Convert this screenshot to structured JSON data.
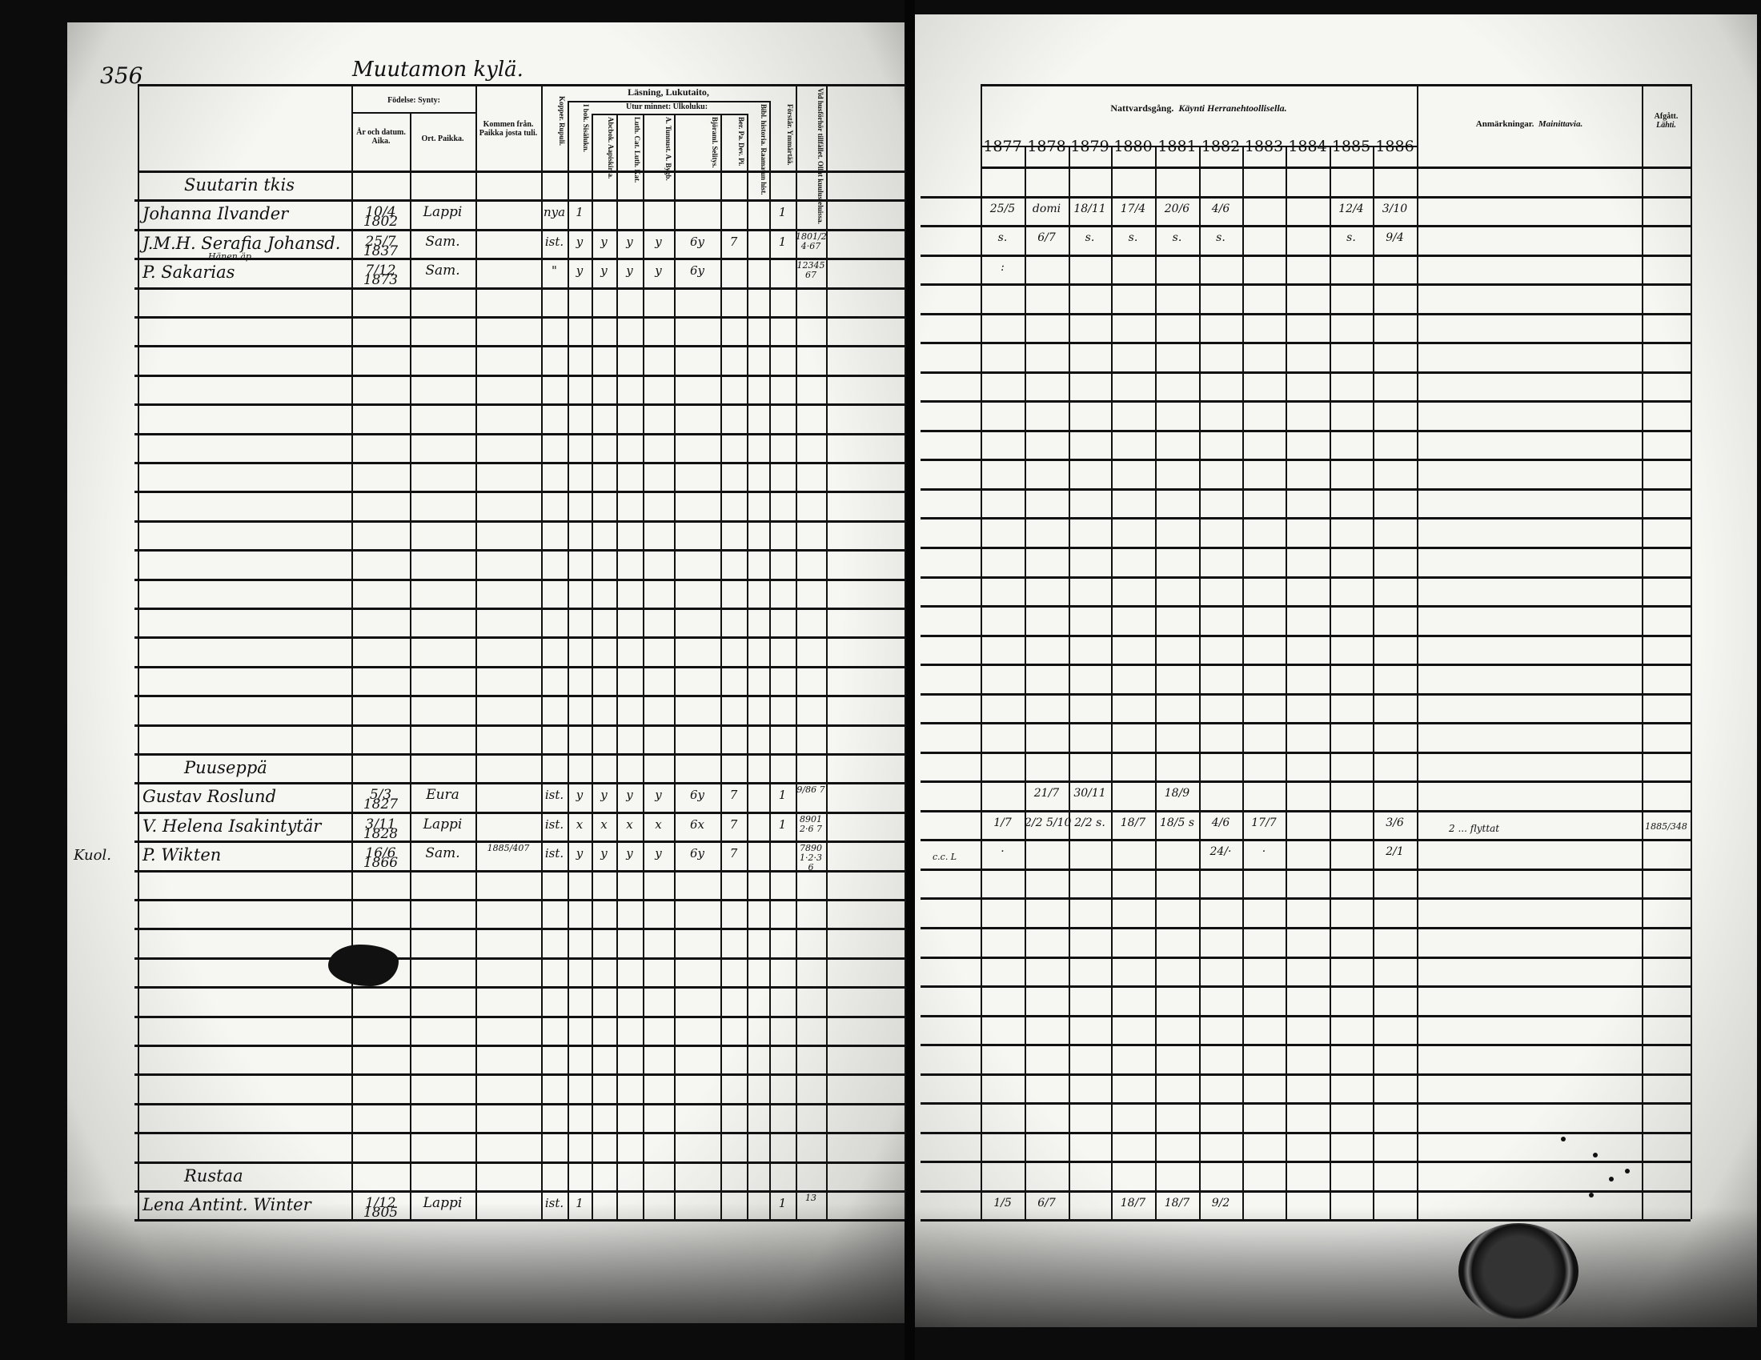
{
  "page_number": "356",
  "village_title": "Muutamon kylä.",
  "left_header": {
    "born": "Födelse: Synty:",
    "born_date": "År och datum. Aika.",
    "born_place": "Ort. Paikka.",
    "came_from": "Kommen från. Paikka josta tuli.",
    "reading": "Läsning, Lukutaito,",
    "by_heart": "Utur minnet: Ulkoluku:",
    "columns": [
      "Kopper. Rupuli.",
      "I bok. Sisälukn.",
      "Abcbok. Aapiskirja.",
      "Luth. Cat. Luth. Kat.",
      "A. Tunnust. A. Bygb.",
      "Björaml. Selitys.",
      "Ber. Pa. Dev. Pi.",
      "Bibl. historia. Raamatun hist.",
      "Förstår. Ymmärtää.",
      "Vid husförhör tillfället. Ollut kuulusteluissa."
    ]
  },
  "right_header": {
    "communion": "Nattvardsgång.",
    "communion_fi": "Käynti Herranehtoollisella.",
    "years": [
      "1877",
      "1878",
      "1879",
      "1880",
      "1881",
      "1882",
      "1883",
      "1884",
      "1885",
      "1886"
    ],
    "remarks": "Anmärkningar.",
    "remarks_fi": "Mainittavia.",
    "departed": "Afgått.",
    "departed_fi": "Lähti."
  },
  "rows": [
    {
      "type": "heading",
      "name": "Suutarin tkis",
      "cells": [],
      "years": [],
      "remarks": "",
      "departed": ""
    },
    {
      "type": "person",
      "name": "Johanna Ilvander",
      "cells": [
        "10/4 1802",
        "Lappi",
        "",
        "nya",
        "1",
        "",
        "",
        "",
        "",
        "",
        "",
        "1",
        ""
      ],
      "years": [
        "25/5",
        "domi",
        "18/11",
        "17/4",
        "20/6",
        "4/6",
        "",
        "",
        "12/4",
        "3/10"
      ],
      "remarks": "",
      "departed": ""
    },
    {
      "type": "person",
      "name": "J.M.H. Serafia Johansd.",
      "cells": [
        "25/7 1837",
        "Sam.",
        "",
        "ist.",
        "y",
        "y",
        "y",
        "y",
        "6y",
        "7",
        "",
        "1",
        "1801/2 4·67"
      ],
      "years": [
        "s.",
        "6/7",
        "s.",
        "s.",
        "s.",
        "s.",
        "",
        "",
        "s.",
        "9/4"
      ],
      "remarks": "",
      "departed": ""
    },
    {
      "type": "person",
      "note": "Hänen äp.",
      "name": "P. Sakarias",
      "cells": [
        "7/12 1873",
        "Sam.",
        "",
        "\"",
        "y",
        "y",
        "y",
        "y",
        "6y",
        "",
        "",
        "",
        "12345 67"
      ],
      "years": [
        ":",
        "",
        "",
        "",
        "",
        "",
        "",
        "",
        "",
        ""
      ],
      "remarks": "",
      "departed": ""
    },
    {
      "type": "heading",
      "name": "Puuseppä",
      "cells": [],
      "years": [],
      "remarks": "",
      "departed": ""
    },
    {
      "type": "person",
      "name": "Gustav Roslund",
      "cells": [
        "5/3 1827",
        "Eura",
        "",
        "ist.",
        "y",
        "y",
        "y",
        "y",
        "6y",
        "7",
        "",
        "1",
        "9/86 7"
      ],
      "years": [
        "",
        "21/7",
        "30/11",
        "",
        "18/9",
        "",
        "",
        "",
        "",
        ""
      ],
      "remarks": "",
      "departed": ""
    },
    {
      "type": "person",
      "name": "V. Helena Isakintytär",
      "cells": [
        "3/11 1828",
        "Lappi",
        "",
        "ist.",
        "x",
        "x",
        "x",
        "x",
        "6x",
        "7",
        "",
        "1",
        "8901 2·6 7"
      ],
      "years": [
        "1/7",
        "2/2 5/10",
        "2/2 s.",
        "18/7",
        "18/5 s",
        "4/6",
        "17/7",
        "",
        "",
        "3/6"
      ],
      "remarks": "",
      "departed": ""
    },
    {
      "type": "person",
      "margin": "Kuol.",
      "name": "P. Wikten",
      "cells": [
        "16/6 1866",
        "Sam.",
        "1885/407",
        "ist.",
        "y",
        "y",
        "y",
        "y",
        "6y",
        "7",
        "",
        "",
        "7890 1·2·3 6"
      ],
      "pre": "c.c. L",
      "years": [
        "·",
        "",
        "",
        "",
        "",
        "24/·",
        "·",
        "",
        "",
        "2/1"
      ],
      "remarks": "2 ... flyttat",
      "departed": "1885/348"
    },
    {
      "type": "heading",
      "name": "Rustaa",
      "cells": [],
      "years": [],
      "remarks": "",
      "departed": ""
    },
    {
      "type": "person",
      "name": "Lena Antint. Winter",
      "cells": [
        "1/12 1805",
        "Lappi",
        "",
        "ist.",
        "1",
        "",
        "",
        "",
        "",
        "",
        "",
        "1",
        "13"
      ],
      "years": [
        "1/5",
        "6/7",
        "",
        "18/7",
        "18/7",
        "9/2",
        "",
        "",
        "",
        ""
      ],
      "remarks": "",
      "departed": ""
    }
  ]
}
